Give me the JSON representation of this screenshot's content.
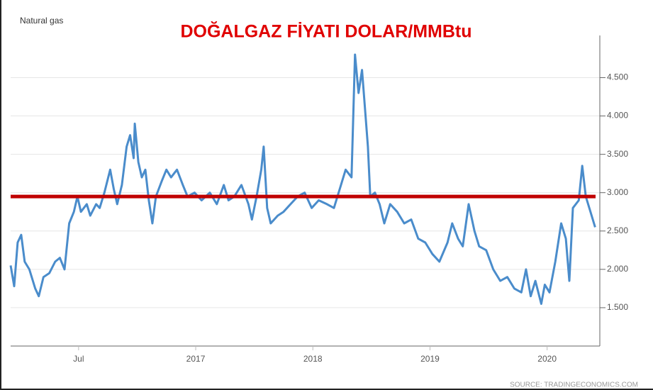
{
  "chart_data": {
    "type": "line",
    "title": "DOĞALGAZ FİYATI DOLAR/MMBtu",
    "subtitle": "Natural gas",
    "source": "SOURCE: TRADINGECONOMICS.COM",
    "x": [
      2015.42,
      2015.45,
      2015.48,
      2015.51,
      2015.54,
      2015.58,
      2015.63,
      2015.66,
      2015.7,
      2015.75,
      2015.8,
      2015.84,
      2015.88,
      2015.92,
      2015.96,
      2015.99,
      2016.02,
      2016.07,
      2016.1,
      2016.15,
      2016.18,
      2016.22,
      2016.27,
      2016.3,
      2016.33,
      2016.37,
      2016.41,
      2016.44,
      2016.47,
      2016.48,
      2016.51,
      2016.54,
      2016.57,
      2016.6,
      2016.63,
      2016.66,
      2016.71,
      2016.75,
      2016.79,
      2016.84,
      2016.89,
      2016.93,
      2016.99,
      2017.05,
      2017.12,
      2017.18,
      2017.24,
      2017.28,
      2017.33,
      2017.39,
      2017.45,
      2017.48,
      2017.52,
      2017.56,
      2017.58,
      2017.61,
      2017.64,
      2017.7,
      2017.75,
      2017.81,
      2017.87,
      2017.93,
      2017.99,
      2018.05,
      2018.12,
      2018.18,
      2018.24,
      2018.28,
      2018.33,
      2018.36,
      2018.39,
      2018.42,
      2018.45,
      2018.47,
      2018.49,
      2018.53,
      2018.57,
      2018.61,
      2018.66,
      2018.72,
      2018.78,
      2018.84,
      2018.9,
      2018.96,
      2019.02,
      2019.08,
      2019.15,
      2019.19,
      2019.24,
      2019.28,
      2019.33,
      2019.38,
      2019.42,
      2019.48,
      2019.54,
      2019.6,
      2019.66,
      2019.72,
      2019.78,
      2019.82,
      2019.86,
      2019.9,
      2019.95,
      2019.98,
      2020.02,
      2020.07,
      2020.12,
      2020.16,
      2020.19,
      2020.22,
      2020.27,
      2020.3,
      2020.33,
      2020.37,
      2020.41
    ],
    "series": [
      {
        "name": "Natural gas",
        "color": "#4a8ccb",
        "values": [
          2.05,
          1.78,
          2.35,
          2.45,
          2.1,
          2.0,
          1.75,
          1.65,
          1.9,
          1.95,
          2.1,
          2.15,
          2.0,
          2.6,
          2.75,
          2.95,
          2.75,
          2.85,
          2.7,
          2.85,
          2.8,
          3.0,
          3.3,
          3.05,
          2.85,
          3.1,
          3.6,
          3.75,
          3.45,
          3.9,
          3.4,
          3.2,
          3.3,
          2.9,
          2.6,
          2.95,
          3.15,
          3.3,
          3.2,
          3.3,
          3.1,
          2.95,
          3.0,
          2.9,
          3.0,
          2.85,
          3.1,
          2.9,
          2.95,
          3.1,
          2.85,
          2.65,
          2.95,
          3.3,
          3.6,
          2.8,
          2.6,
          2.7,
          2.75,
          2.85,
          2.95,
          3.0,
          2.8,
          2.9,
          2.85,
          2.8,
          3.1,
          3.3,
          3.2,
          4.8,
          4.3,
          4.6,
          4.0,
          3.6,
          2.95,
          3.0,
          2.85,
          2.6,
          2.85,
          2.75,
          2.6,
          2.65,
          2.4,
          2.35,
          2.2,
          2.1,
          2.35,
          2.6,
          2.4,
          2.3,
          2.85,
          2.5,
          2.3,
          2.25,
          2.0,
          1.85,
          1.9,
          1.75,
          1.7,
          2.0,
          1.65,
          1.85,
          1.55,
          1.8,
          1.7,
          2.1,
          2.6,
          2.4,
          1.85,
          2.8,
          2.9,
          3.35,
          2.95,
          2.75,
          2.55
        ]
      }
    ],
    "reference_line": {
      "value": 2.95,
      "color": "#c00000"
    },
    "xlim": [
      2015.42,
      2020.45
    ],
    "xticks": [
      {
        "value": 2016,
        "label": "Jul"
      },
      2017,
      2018,
      2019,
      2020
    ],
    "ylim": [
      1.0,
      5.05
    ],
    "yticks": [
      {
        "value": 1.5,
        "label": "1.500"
      },
      {
        "value": 2.0,
        "label": "2.000"
      },
      {
        "value": 2.5,
        "label": "2.500"
      },
      {
        "value": 3.0,
        "label": "3.000"
      },
      {
        "value": 3.5,
        "label": "3.500"
      },
      {
        "value": 4.0,
        "label": "4.000"
      },
      {
        "value": 4.5,
        "label": "4.500"
      }
    ],
    "grid": true
  }
}
